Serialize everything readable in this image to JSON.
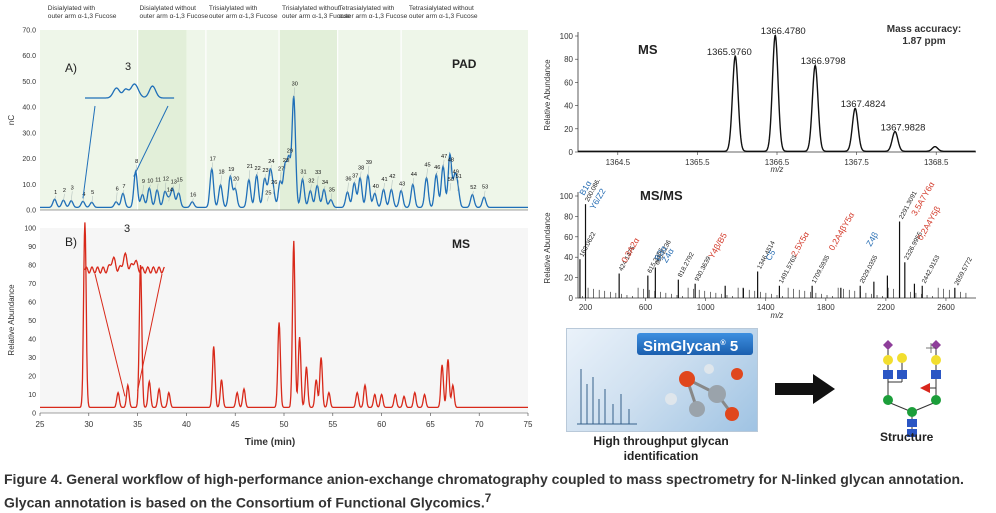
{
  "chart_data": [
    {
      "type": "line",
      "panel": "A)",
      "label": "PAD",
      "xlabel": "Time (min)",
      "ylabel": "nC",
      "xlim": [
        25,
        75
      ],
      "ylim": [
        0,
        70
      ],
      "xticks": [
        25,
        30,
        35,
        40,
        45,
        50,
        55,
        60,
        65,
        70,
        75
      ],
      "yticks": [
        0.0,
        10.0,
        20.0,
        30.0,
        40.0,
        50.0,
        60.0,
        70.0
      ],
      "inset_label": "3",
      "group_labels": [
        "Disialylated with outer arm α-1,3 Fucose",
        "Disialylated without outer arm α-1,3 Fucose",
        "Trisialylated with outer arm α-1,3 Fucose",
        "Trisialylated without outer arm α-1,3 Fucose",
        "Tetrasialylated with outer arm α-1,3 Fucose",
        "Tetrasialylated without outer arm α-1,3 Fucose"
      ],
      "peaks": [
        {
          "label": "1",
          "x": 26.5,
          "y": 3.2
        },
        {
          "label": "2",
          "x": 27.4,
          "y": 2.8
        },
        {
          "label": "3",
          "x": 28.2,
          "y": 2.6
        },
        {
          "label": "4",
          "x": 29.4,
          "y": 2.4
        },
        {
          "label": "5",
          "x": 30.3,
          "y": 2.0
        },
        {
          "label": "6",
          "x": 32.8,
          "y": 2.2
        },
        {
          "label": "7",
          "x": 33.5,
          "y": 5.5
        },
        {
          "label": "8",
          "x": 34.8,
          "y": 14.0
        },
        {
          "label": "9",
          "x": 35.5,
          "y": 5.0
        },
        {
          "label": "10",
          "x": 36.2,
          "y": 7.5
        },
        {
          "label": "11",
          "x": 37.0,
          "y": 6.8
        },
        {
          "label": "12",
          "x": 37.8,
          "y": 6.0
        },
        {
          "label": "13",
          "x": 38.6,
          "y": 7.2
        },
        {
          "label": "14",
          "x": 38.2,
          "y": 3.0
        },
        {
          "label": "15",
          "x": 39.2,
          "y": 5.6
        },
        {
          "label": "16",
          "x": 40.6,
          "y": 2.2
        },
        {
          "label": "17",
          "x": 42.6,
          "y": 15.0
        },
        {
          "label": "18",
          "x": 43.5,
          "y": 8.8
        },
        {
          "label": "19",
          "x": 44.5,
          "y": 12.0
        },
        {
          "label": "20",
          "x": 45.0,
          "y": 7.2
        },
        {
          "label": "21",
          "x": 46.4,
          "y": 10.8
        },
        {
          "label": "22",
          "x": 47.2,
          "y": 12.5
        },
        {
          "label": "23",
          "x": 48.0,
          "y": 10.5
        },
        {
          "label": "24",
          "x": 48.6,
          "y": 12.8
        },
        {
          "label": "25",
          "x": 48.3,
          "y": 3.0
        },
        {
          "label": "26",
          "x": 48.9,
          "y": 5.8
        },
        {
          "label": "27",
          "x": 49.6,
          "y": 10.0
        },
        {
          "label": "28",
          "x": 50.1,
          "y": 15.5
        },
        {
          "label": "29",
          "x": 50.5,
          "y": 18.0
        },
        {
          "label": "30",
          "x": 51.0,
          "y": 43.0
        },
        {
          "label": "31",
          "x": 51.9,
          "y": 11.0
        },
        {
          "label": "32",
          "x": 52.7,
          "y": 6.5
        },
        {
          "label": "33",
          "x": 53.4,
          "y": 8.5
        },
        {
          "label": "34",
          "x": 54.1,
          "y": 7.0
        },
        {
          "label": "35",
          "x": 54.8,
          "y": 3.0
        },
        {
          "label": "36",
          "x": 56.5,
          "y": 6.0
        },
        {
          "label": "37",
          "x": 57.2,
          "y": 9.5
        },
        {
          "label": "38",
          "x": 57.8,
          "y": 11.5
        },
        {
          "label": "39",
          "x": 58.6,
          "y": 12.5
        },
        {
          "label": "40",
          "x": 59.3,
          "y": 5.5
        },
        {
          "label": "41",
          "x": 60.2,
          "y": 7.0
        },
        {
          "label": "42",
          "x": 61.0,
          "y": 7.0
        },
        {
          "label": "43",
          "x": 62.0,
          "y": 6.5
        },
        {
          "label": "44",
          "x": 63.2,
          "y": 9.0
        },
        {
          "label": "45",
          "x": 64.6,
          "y": 11.5
        },
        {
          "label": "46",
          "x": 65.6,
          "y": 12.8
        },
        {
          "label": "47",
          "x": 66.3,
          "y": 16.0
        },
        {
          "label": "48",
          "x": 67.0,
          "y": 13.5
        },
        {
          "label": "49",
          "x": 67.5,
          "y": 11.0
        },
        {
          "label": "50",
          "x": 67.0,
          "y": 7.0
        },
        {
          "label": "51",
          "x": 67.8,
          "y": 7.0
        },
        {
          "label": "52",
          "x": 69.3,
          "y": 5.0
        },
        {
          "label": "53",
          "x": 70.5,
          "y": 4.0
        }
      ]
    },
    {
      "type": "line",
      "panel": "B)",
      "label": "MS",
      "xlabel": "Time (min)",
      "ylabel": "Relative Abundance",
      "xlim": [
        25,
        75
      ],
      "ylim": [
        0,
        100
      ],
      "yticks": [
        0,
        10,
        20,
        30,
        40,
        50,
        60,
        70,
        80,
        90,
        100
      ],
      "inset_label": "3",
      "peaks": [
        {
          "x": 29.6,
          "y": 100
        },
        {
          "x": 33.0,
          "y": 8
        },
        {
          "x": 34.0,
          "y": 12
        },
        {
          "x": 35.3,
          "y": 77
        },
        {
          "x": 36.2,
          "y": 14
        },
        {
          "x": 37.2,
          "y": 10
        },
        {
          "x": 38.2,
          "y": 8
        },
        {
          "x": 42.8,
          "y": 33
        },
        {
          "x": 43.6,
          "y": 15
        },
        {
          "x": 45.2,
          "y": 8
        },
        {
          "x": 45.9,
          "y": 10
        },
        {
          "x": 49.5,
          "y": 46
        },
        {
          "x": 51.0,
          "y": 90
        },
        {
          "x": 51.6,
          "y": 38
        },
        {
          "x": 52.3,
          "y": 22
        },
        {
          "x": 53.3,
          "y": 15
        },
        {
          "x": 53.8,
          "y": 27
        },
        {
          "x": 54.6,
          "y": 8
        },
        {
          "x": 57.5,
          "y": 8
        },
        {
          "x": 58.3,
          "y": 12
        },
        {
          "x": 59.3,
          "y": 7
        },
        {
          "x": 60.0,
          "y": 7
        },
        {
          "x": 61.4,
          "y": 7
        },
        {
          "x": 62.3,
          "y": 6
        },
        {
          "x": 63.4,
          "y": 8
        },
        {
          "x": 64.4,
          "y": 7
        },
        {
          "x": 66.2,
          "y": 23
        },
        {
          "x": 66.8,
          "y": 26
        },
        {
          "x": 67.3,
          "y": 12
        }
      ]
    },
    {
      "type": "line",
      "label": "MS",
      "xlabel": "m/z",
      "ylabel": "Relative Abundance",
      "xlim": [
        1364.0,
        1369.0
      ],
      "ylim": [
        0,
        100
      ],
      "xticks": [
        1364.5,
        1365.5,
        1366.5,
        1367.5,
        1368.5
      ],
      "yticks": [
        0,
        20,
        40,
        60,
        80,
        100
      ],
      "annotation": "Mass accuracy:\n1.87 ppm",
      "peaks": [
        {
          "mz": 1365.976,
          "label": "1365.9760",
          "y": 82
        },
        {
          "mz": 1366.478,
          "label": "1366.4780",
          "y": 100
        },
        {
          "mz": 1366.9798,
          "label": "1366.9798",
          "y": 74
        },
        {
          "mz": 1367.4824,
          "label": "1367.4824",
          "y": 37
        },
        {
          "mz": 1367.9828,
          "label": "1367.9828",
          "y": 17
        },
        {
          "mz": 1368.485,
          "label": "",
          "y": 4
        }
      ]
    },
    {
      "type": "bar",
      "label": "MS/MS",
      "xlabel": "m/z",
      "ylabel": "Relative Abundance",
      "xlim": [
        150,
        2800
      ],
      "ylim": [
        0,
        100
      ],
      "xticks": [
        200,
        600,
        1000,
        1400,
        1800,
        2200,
        2600
      ],
      "yticks": [
        0,
        20,
        40,
        60,
        80,
        100
      ],
      "peaks": [
        {
          "mz": 200,
          "y": 92,
          "label": "200.0869"
        },
        {
          "mz": 163,
          "y": 38,
          "label": "163.0622"
        },
        {
          "mz": 424,
          "y": 24,
          "label": "424.1475"
        },
        {
          "mz": 665,
          "y": 30,
          "label": "665.2236"
        },
        {
          "mz": 615,
          "y": 22,
          "label": "615.2356"
        },
        {
          "mz": 818,
          "y": 18,
          "label": "818.2792"
        },
        {
          "mz": 930,
          "y": 14,
          "label": "930.3639"
        },
        {
          "mz": 1346,
          "y": 26,
          "label": "1346.4514"
        },
        {
          "mz": 1491,
          "y": 12,
          "label": "1491.5763"
        },
        {
          "mz": 1709,
          "y": 12,
          "label": "1709.5935"
        },
        {
          "mz": 2029,
          "y": 12,
          "label": "2029.0355"
        },
        {
          "mz": 2291,
          "y": 75,
          "label": "2291.3091"
        },
        {
          "mz": 2326,
          "y": 35,
          "label": "2326.9955"
        },
        {
          "mz": 2442,
          "y": 12,
          "label": "2442.9153"
        },
        {
          "mz": 2659,
          "y": 10,
          "label": "2659.5772"
        },
        {
          "mz": 1130,
          "y": 12,
          "label": ""
        },
        {
          "mz": 1250,
          "y": 10,
          "label": ""
        },
        {
          "mz": 1900,
          "y": 10,
          "label": ""
        },
        {
          "mz": 2120,
          "y": 16,
          "label": ""
        },
        {
          "mz": 2210,
          "y": 22,
          "label": ""
        },
        {
          "mz": 2390,
          "y": 14,
          "label": ""
        }
      ],
      "fragment_labels": [
        {
          "text": "B1α",
          "mz": 190,
          "y": 100,
          "color": "#2a6fb4"
        },
        {
          "text": "Y6/Z2",
          "mz": 260,
          "y": 86,
          "color": "#2a6fb4"
        },
        {
          "text": "0.3A2α",
          "mz": 470,
          "y": 34,
          "color": "#d33a2a"
        },
        {
          "text": "B3α",
          "mz": 690,
          "y": 36,
          "color": "#2a6fb4"
        },
        {
          "text": "Z4α",
          "mz": 740,
          "y": 34,
          "color": "#2a6fb4"
        },
        {
          "text": "Y4β/B5",
          "mz": 1050,
          "y": 38,
          "color": "#d33a2a"
        },
        {
          "text": "C5",
          "mz": 1430,
          "y": 36,
          "color": "#2a6fb4"
        },
        {
          "text": "2,5X5α",
          "mz": 1600,
          "y": 40,
          "color": "#d33a2a"
        },
        {
          "text": "0,2A4βY5α",
          "mz": 1850,
          "y": 46,
          "color": "#d33a2a"
        },
        {
          "text": "Z4β",
          "mz": 2100,
          "y": 50,
          "color": "#2a6fb4"
        },
        {
          "text": "3,5A7Y6α",
          "mz": 2400,
          "y": 80,
          "color": "#d33a2a"
        },
        {
          "text": "0,2A4Y5β",
          "mz": 2440,
          "y": 56,
          "color": "#d33a2a"
        }
      ]
    }
  ],
  "simglycan": {
    "title": "SimGlycan",
    "version": "5",
    "caption": "High throughput glycan identification"
  },
  "structure": {
    "label": "Structure"
  },
  "caption": {
    "text": "Figure 4. General workflow of high-performance anion-exchange chromatography coupled to mass spectrometry for N-linked glycan annotation. Glycan annotation is based on the Consortium of Functional Glycomics.",
    "superscript": "7"
  },
  "colors": {
    "pad_trace": "#1f6fb8",
    "ms_trace": "#d8291a",
    "panel_bg": "#eef6e9",
    "fragment_blue": "#2a6fb4",
    "fragment_red": "#d33a2a"
  }
}
